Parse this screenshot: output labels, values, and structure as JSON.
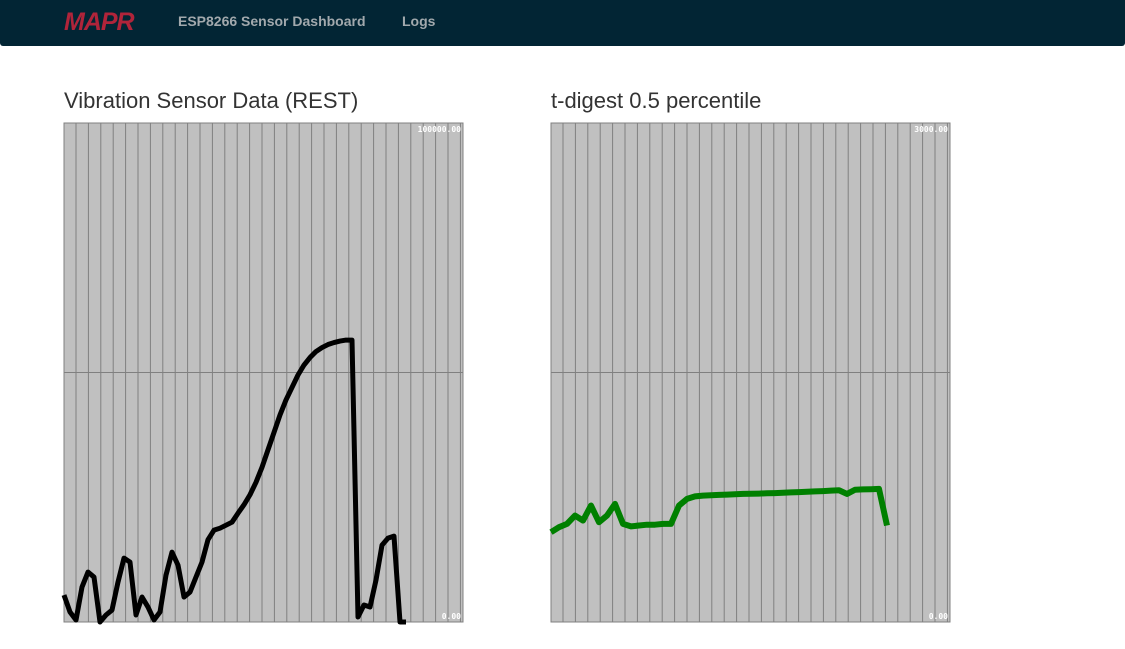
{
  "nav": {
    "brand": "MAPR",
    "links": [
      "ESP8266 Sensor Dashboard",
      "Logs"
    ]
  },
  "chart_data": [
    {
      "type": "line",
      "title": "Vibration Sensor Data (REST)",
      "color": "#000000",
      "ylim": [
        0,
        100000
      ],
      "yticks": [
        {
          "value": 0,
          "label": "0.00"
        },
        {
          "value": 100000,
          "label": "100000.00"
        }
      ],
      "values": [
        5400,
        2000,
        400,
        7000,
        10000,
        9000,
        0,
        1400,
        2400,
        8000,
        12800,
        12000,
        1400,
        5000,
        3000,
        400,
        2000,
        9400,
        14000,
        11400,
        5000,
        6000,
        9000,
        12000,
        16500,
        18400,
        18800,
        19400,
        20000,
        21800,
        23500,
        25500,
        28000,
        31000,
        34500,
        38000,
        41500,
        44500,
        47000,
        49500,
        51500,
        53000,
        54200,
        55000,
        55600,
        56000,
        56300,
        56500,
        56500,
        1000,
        3400,
        3000,
        8400,
        15400,
        16800,
        17200,
        0,
        0
      ]
    },
    {
      "type": "line",
      "title": "t-digest 0.5 percentile",
      "color": "#008000",
      "ylim": [
        0,
        3000
      ],
      "yticks": [
        {
          "value": 0,
          "label": "0.00"
        },
        {
          "value": 3000,
          "label": "3000.00"
        }
      ],
      "values": [
        540,
        570,
        590,
        640,
        610,
        700,
        600,
        640,
        710,
        590,
        575,
        580,
        585,
        585,
        590,
        590,
        700,
        740,
        755,
        760,
        762,
        764,
        766,
        768,
        770,
        771,
        772,
        774,
        775,
        777,
        779,
        781,
        783,
        785,
        787,
        790,
        792,
        770,
        795,
        797,
        798,
        800,
        580
      ]
    }
  ]
}
